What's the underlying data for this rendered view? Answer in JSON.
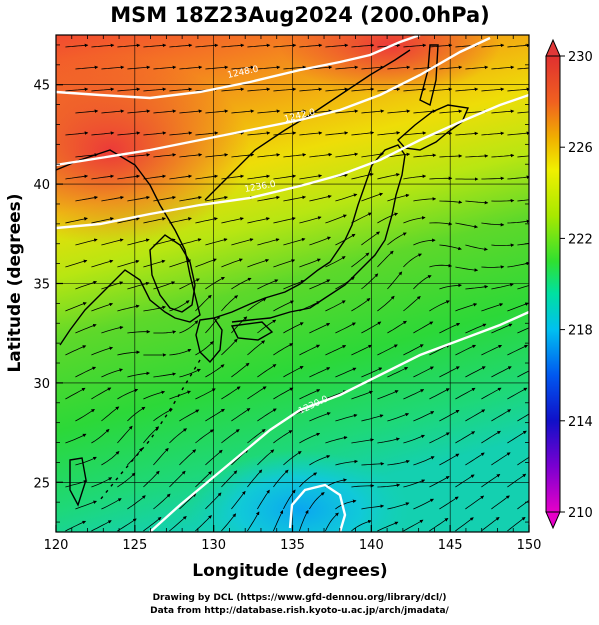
{
  "title": "MSM 18Z23Aug2024 (200.0hPa)",
  "x_axis": {
    "label": "Longitude (degrees)",
    "range": [
      120,
      150
    ],
    "ticks": [
      "120",
      "125",
      "130",
      "135",
      "140",
      "145",
      "150"
    ]
  },
  "y_axis": {
    "label": "Latitude  (degrees)",
    "range": [
      22.5,
      47.5
    ],
    "ticks": [
      "25",
      "30",
      "35",
      "40",
      "45"
    ]
  },
  "colorbar": {
    "range": [
      210,
      230
    ],
    "ticks": [
      "210",
      "214",
      "218",
      "222",
      "226",
      "230"
    ],
    "colors": [
      "#e600c8",
      "#7a00d0",
      "#1010c8",
      "#0058f0",
      "#00c0f0",
      "#00e0a0",
      "#30e030",
      "#a8e800",
      "#f0f000",
      "#f0b000",
      "#f06020",
      "#e03030"
    ]
  },
  "contour_labels": [
    "1248.0",
    "1242.0",
    "1236.0",
    "1230.0"
  ],
  "credits": {
    "line1": "Drawing by DCL (https://www.gfd-dennou.org/library/dcl/)",
    "line2": "Data from http://database.rish.kyoto-u.ac.jp/arch/jmadata/"
  }
}
